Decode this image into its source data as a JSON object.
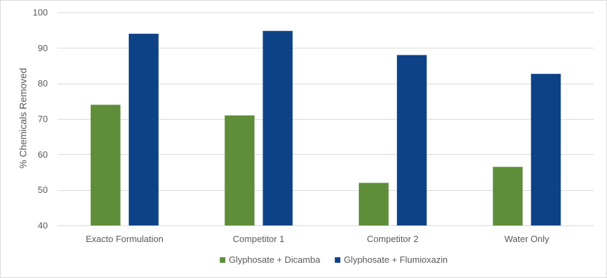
{
  "chart_data": {
    "type": "bar",
    "title": "",
    "xlabel": "",
    "ylabel": "% Chemicals Removed",
    "ylim": [
      40,
      100
    ],
    "yticks": [
      40,
      50,
      60,
      70,
      80,
      90,
      100
    ],
    "grid": true,
    "legend_position": "bottom",
    "categories": [
      "Exacto Formulation",
      "Competitor 1",
      "Competitor 2",
      "Water Only"
    ],
    "series": [
      {
        "name": "Glyphosate + Dicamba",
        "color": "#5f8e3a",
        "values": [
          74,
          71,
          52,
          56.5
        ]
      },
      {
        "name": "Glyphosate + Flumioxazin",
        "color": "#0e4287",
        "values": [
          94,
          94.8,
          88,
          82.7
        ]
      }
    ]
  }
}
